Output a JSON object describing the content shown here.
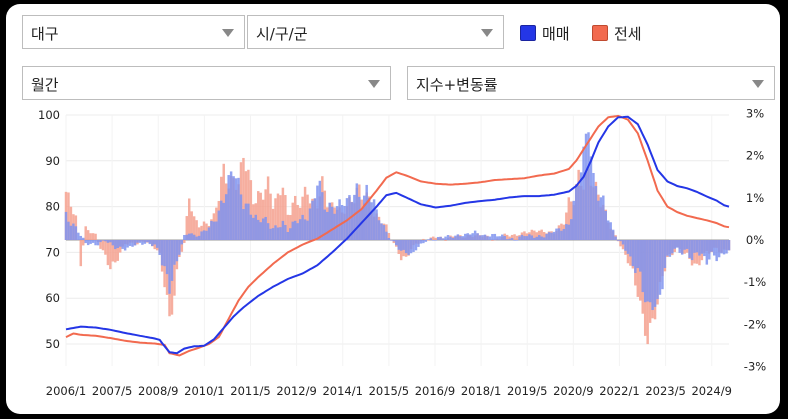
{
  "controls": {
    "region": "대구",
    "subregion": "시/구/군",
    "period": "월간",
    "metric": "지수+변동률"
  },
  "colors": {
    "sale": "#2436e6",
    "jeonse": "#f26a4f",
    "sale_bar": "#7f93ee",
    "jeonse_bar": "#f5a08e"
  },
  "chart_data": {
    "type": "line",
    "title": "",
    "series": [
      {
        "name": "매매",
        "kind": "index",
        "axis": "left"
      },
      {
        "name": "전세",
        "kind": "index",
        "axis": "left"
      },
      {
        "name": "매매",
        "kind": "change_rate",
        "axis": "right"
      },
      {
        "name": "전세",
        "kind": "change_rate",
        "axis": "right"
      }
    ],
    "x_ticks": [
      "2006/1",
      "2007/5",
      "2008/9",
      "2010/1",
      "2011/5",
      "2012/9",
      "2014/1",
      "2015/5",
      "2016/9",
      "2018/1",
      "2019/5",
      "2020/9",
      "2022/1",
      "2023/5",
      "2024/9"
    ],
    "x_range": [
      "2006/1",
      "2025/3"
    ],
    "y_left": {
      "ticks": [
        100,
        90,
        80,
        70,
        60,
        50
      ],
      "range": [
        47,
        100
      ]
    },
    "y_right": {
      "ticks": [
        "3%",
        "2%",
        "1%",
        "0%",
        "-1%",
        "-2%",
        "-3%"
      ],
      "range": [
        -3,
        3
      ]
    },
    "index_points": {
      "sale": [
        [
          0,
          53.2
        ],
        [
          6,
          53.8
        ],
        [
          12,
          53.6
        ],
        [
          18,
          53.1
        ],
        [
          24,
          52.4
        ],
        [
          30,
          51.8
        ],
        [
          36,
          51.2
        ],
        [
          38,
          50.9
        ],
        [
          40,
          49.5
        ],
        [
          42,
          48.2
        ],
        [
          45,
          48.0
        ],
        [
          48,
          49.0
        ],
        [
          52,
          49.5
        ],
        [
          56,
          49.6
        ],
        [
          60,
          51.0
        ],
        [
          64,
          53.5
        ],
        [
          68,
          56.0
        ],
        [
          72,
          58.0
        ],
        [
          78,
          60.5
        ],
        [
          84,
          62.5
        ],
        [
          90,
          64.2
        ],
        [
          96,
          65.4
        ],
        [
          102,
          67.2
        ],
        [
          108,
          70.0
        ],
        [
          114,
          73.0
        ],
        [
          120,
          76.5
        ],
        [
          126,
          80.0
        ],
        [
          130,
          82.5
        ],
        [
          134,
          83.0
        ],
        [
          138,
          82.0
        ],
        [
          144,
          80.5
        ],
        [
          150,
          79.8
        ],
        [
          156,
          80.2
        ],
        [
          162,
          80.8
        ],
        [
          168,
          81.2
        ],
        [
          174,
          81.5
        ],
        [
          180,
          82.0
        ],
        [
          186,
          82.3
        ],
        [
          192,
          82.3
        ],
        [
          198,
          82.6
        ],
        [
          204,
          83.3
        ],
        [
          207,
          84.5
        ],
        [
          210,
          86.5
        ],
        [
          213,
          90.0
        ],
        [
          216,
          94.0
        ],
        [
          220,
          97.5
        ],
        [
          224,
          99.5
        ],
        [
          228,
          99.6
        ],
        [
          232,
          98.0
        ],
        [
          236,
          93.5
        ],
        [
          240,
          88.0
        ],
        [
          244,
          85.5
        ],
        [
          248,
          84.5
        ],
        [
          252,
          84.0
        ],
        [
          256,
          83.2
        ],
        [
          260,
          82.2
        ],
        [
          264,
          81.3
        ],
        [
          267,
          80.3
        ],
        [
          269,
          80.0
        ]
      ],
      "jeonse": [
        [
          0,
          51.5
        ],
        [
          3,
          52.3
        ],
        [
          6,
          52.0
        ],
        [
          12,
          51.8
        ],
        [
          18,
          51.3
        ],
        [
          24,
          50.7
        ],
        [
          30,
          50.3
        ],
        [
          36,
          50.1
        ],
        [
          40,
          49.8
        ],
        [
          42,
          48.0
        ],
        [
          46,
          47.5
        ],
        [
          50,
          48.5
        ],
        [
          54,
          49.2
        ],
        [
          58,
          50.0
        ],
        [
          62,
          51.5
        ],
        [
          66,
          55.5
        ],
        [
          70,
          59.5
        ],
        [
          74,
          62.5
        ],
        [
          78,
          64.6
        ],
        [
          84,
          67.5
        ],
        [
          90,
          70.0
        ],
        [
          96,
          71.7
        ],
        [
          102,
          73.0
        ],
        [
          108,
          75.0
        ],
        [
          114,
          77.0
        ],
        [
          120,
          79.5
        ],
        [
          126,
          83.5
        ],
        [
          130,
          86.3
        ],
        [
          134,
          87.5
        ],
        [
          138,
          86.8
        ],
        [
          144,
          85.5
        ],
        [
          150,
          85.0
        ],
        [
          156,
          84.8
        ],
        [
          162,
          85.0
        ],
        [
          168,
          85.3
        ],
        [
          174,
          85.8
        ],
        [
          180,
          86.0
        ],
        [
          186,
          86.2
        ],
        [
          192,
          86.8
        ],
        [
          198,
          87.2
        ],
        [
          204,
          88.2
        ],
        [
          207,
          90.0
        ],
        [
          210,
          92.5
        ],
        [
          213,
          95.0
        ],
        [
          216,
          97.5
        ],
        [
          220,
          99.5
        ],
        [
          224,
          99.8
        ],
        [
          228,
          99.0
        ],
        [
          232,
          96.0
        ],
        [
          236,
          90.0
        ],
        [
          240,
          83.5
        ],
        [
          244,
          80.0
        ],
        [
          248,
          78.8
        ],
        [
          252,
          78.0
        ],
        [
          256,
          77.5
        ],
        [
          260,
          77.0
        ],
        [
          264,
          76.4
        ],
        [
          267,
          75.7
        ],
        [
          269,
          75.5
        ]
      ]
    },
    "rate_points": {
      "sale": [
        [
          0,
          0.6
        ],
        [
          4,
          0.3
        ],
        [
          8,
          -0.1
        ],
        [
          12,
          -0.1
        ],
        [
          16,
          0.0
        ],
        [
          20,
          -0.2
        ],
        [
          24,
          -0.2
        ],
        [
          28,
          -0.1
        ],
        [
          32,
          -0.1
        ],
        [
          36,
          -0.1
        ],
        [
          38,
          -0.3
        ],
        [
          40,
          -0.7
        ],
        [
          42,
          -1.2
        ],
        [
          44,
          -0.8
        ],
        [
          46,
          -0.3
        ],
        [
          48,
          0.1
        ],
        [
          50,
          0.2
        ],
        [
          52,
          0.1
        ],
        [
          54,
          0.1
        ],
        [
          58,
          0.3
        ],
        [
          62,
          0.7
        ],
        [
          64,
          1.0
        ],
        [
          66,
          1.3
        ],
        [
          68,
          1.6
        ],
        [
          70,
          1.3
        ],
        [
          72,
          1.0
        ],
        [
          74,
          0.8
        ],
        [
          76,
          0.6
        ],
        [
          78,
          0.4
        ],
        [
          80,
          0.5
        ],
        [
          82,
          0.4
        ],
        [
          84,
          0.3
        ],
        [
          88,
          0.4
        ],
        [
          90,
          0.2
        ],
        [
          94,
          0.5
        ],
        [
          98,
          0.6
        ],
        [
          100,
          0.8
        ],
        [
          102,
          1.3
        ],
        [
          104,
          1.0
        ],
        [
          106,
          0.7
        ],
        [
          108,
          0.9
        ],
        [
          110,
          0.8
        ],
        [
          112,
          0.9
        ],
        [
          114,
          0.8
        ],
        [
          116,
          1.0
        ],
        [
          118,
          1.2
        ],
        [
          120,
          1.0
        ],
        [
          122,
          1.2
        ],
        [
          124,
          1.0
        ],
        [
          126,
          0.6
        ],
        [
          128,
          0.4
        ],
        [
          130,
          0.2
        ],
        [
          132,
          0.0
        ],
        [
          134,
          -0.1
        ],
        [
          136,
          -0.3
        ],
        [
          138,
          -0.3
        ],
        [
          140,
          -0.4
        ],
        [
          142,
          -0.2
        ],
        [
          144,
          -0.1
        ],
        [
          146,
          0.0
        ],
        [
          150,
          0.0
        ],
        [
          154,
          0.1
        ],
        [
          158,
          0.1
        ],
        [
          162,
          0.1
        ],
        [
          166,
          0.2
        ],
        [
          170,
          0.1
        ],
        [
          174,
          0.1
        ],
        [
          178,
          0.1
        ],
        [
          182,
          0.0
        ],
        [
          186,
          0.1
        ],
        [
          190,
          0.1
        ],
        [
          194,
          0.1
        ],
        [
          198,
          0.2
        ],
        [
          202,
          0.3
        ],
        [
          204,
          0.4
        ],
        [
          206,
          0.9
        ],
        [
          208,
          1.3
        ],
        [
          210,
          2.0
        ],
        [
          212,
          2.7
        ],
        [
          214,
          1.5
        ],
        [
          216,
          1.2
        ],
        [
          218,
          0.9
        ],
        [
          220,
          0.5
        ],
        [
          222,
          0.2
        ],
        [
          224,
          0.0
        ],
        [
          226,
          -0.1
        ],
        [
          228,
          -0.3
        ],
        [
          230,
          -0.6
        ],
        [
          232,
          -0.8
        ],
        [
          234,
          -1.2
        ],
        [
          236,
          -1.6
        ],
        [
          238,
          -1.4
        ],
        [
          240,
          -1.5
        ],
        [
          242,
          -1.0
        ],
        [
          244,
          -0.5
        ],
        [
          246,
          -0.3
        ],
        [
          248,
          -0.2
        ],
        [
          250,
          -0.3
        ],
        [
          252,
          -0.2
        ],
        [
          254,
          -0.5
        ],
        [
          256,
          -0.3
        ],
        [
          258,
          -0.4
        ],
        [
          260,
          -0.5
        ],
        [
          262,
          -0.3
        ],
        [
          264,
          -0.4
        ],
        [
          266,
          -0.4
        ],
        [
          268,
          -0.3
        ]
      ],
      "jeonse": [
        [
          0,
          1.0
        ],
        [
          2,
          0.8
        ],
        [
          4,
          0.5
        ],
        [
          6,
          -0.5
        ],
        [
          8,
          0.3
        ],
        [
          10,
          0.2
        ],
        [
          12,
          0.1
        ],
        [
          14,
          -0.2
        ],
        [
          16,
          -0.4
        ],
        [
          18,
          -0.6
        ],
        [
          20,
          -0.5
        ],
        [
          22,
          -0.3
        ],
        [
          24,
          -0.1
        ],
        [
          28,
          -0.1
        ],
        [
          32,
          0.0
        ],
        [
          36,
          -0.2
        ],
        [
          38,
          -0.4
        ],
        [
          40,
          -1.0
        ],
        [
          42,
          -1.8
        ],
        [
          44,
          -1.2
        ],
        [
          46,
          -0.4
        ],
        [
          48,
          -0.1
        ],
        [
          50,
          1.0
        ],
        [
          52,
          0.5
        ],
        [
          54,
          0.4
        ],
        [
          56,
          0.4
        ],
        [
          58,
          0.4
        ],
        [
          60,
          0.5
        ],
        [
          62,
          1.0
        ],
        [
          64,
          1.7
        ],
        [
          66,
          1.4
        ],
        [
          68,
          1.5
        ],
        [
          70,
          1.3
        ],
        [
          72,
          1.9
        ],
        [
          74,
          1.5
        ],
        [
          76,
          1.0
        ],
        [
          78,
          1.1
        ],
        [
          80,
          1.2
        ],
        [
          82,
          1.3
        ],
        [
          84,
          0.8
        ],
        [
          86,
          0.9
        ],
        [
          88,
          1.4
        ],
        [
          90,
          0.6
        ],
        [
          92,
          1.0
        ],
        [
          94,
          0.8
        ],
        [
          96,
          0.9
        ],
        [
          98,
          1.1
        ],
        [
          100,
          0.9
        ],
        [
          102,
          1.0
        ],
        [
          104,
          1.4
        ],
        [
          106,
          0.9
        ],
        [
          108,
          0.7
        ],
        [
          110,
          0.8
        ],
        [
          112,
          0.6
        ],
        [
          114,
          1.0
        ],
        [
          116,
          0.9
        ],
        [
          118,
          1.2
        ],
        [
          120,
          0.9
        ],
        [
          122,
          1.0
        ],
        [
          124,
          0.8
        ],
        [
          126,
          0.6
        ],
        [
          128,
          0.5
        ],
        [
          130,
          0.3
        ],
        [
          132,
          0.0
        ],
        [
          134,
          -0.2
        ],
        [
          136,
          -0.4
        ],
        [
          138,
          -0.4
        ],
        [
          140,
          -0.2
        ],
        [
          142,
          -0.1
        ],
        [
          146,
          0.0
        ],
        [
          150,
          0.1
        ],
        [
          154,
          0.0
        ],
        [
          158,
          0.1
        ],
        [
          162,
          0.1
        ],
        [
          166,
          0.1
        ],
        [
          170,
          0.1
        ],
        [
          174,
          0.0
        ],
        [
          178,
          0.1
        ],
        [
          182,
          0.1
        ],
        [
          186,
          0.2
        ],
        [
          190,
          0.2
        ],
        [
          194,
          0.2
        ],
        [
          198,
          0.2
        ],
        [
          202,
          0.4
        ],
        [
          204,
          0.8
        ],
        [
          206,
          1.0
        ],
        [
          208,
          1.6
        ],
        [
          210,
          1.4
        ],
        [
          212,
          1.6
        ],
        [
          214,
          1.2
        ],
        [
          216,
          1.0
        ],
        [
          218,
          0.8
        ],
        [
          220,
          0.5
        ],
        [
          222,
          0.2
        ],
        [
          224,
          0.0
        ],
        [
          226,
          -0.3
        ],
        [
          228,
          -0.5
        ],
        [
          230,
          -0.8
        ],
        [
          232,
          -1.1
        ],
        [
          234,
          -1.8
        ],
        [
          236,
          -2.4
        ],
        [
          238,
          -2.0
        ],
        [
          240,
          -1.6
        ],
        [
          242,
          -0.8
        ],
        [
          244,
          -0.4
        ],
        [
          246,
          -0.3
        ],
        [
          248,
          -0.2
        ],
        [
          250,
          -0.3
        ],
        [
          252,
          -0.4
        ],
        [
          254,
          -0.5
        ],
        [
          256,
          -0.6
        ],
        [
          258,
          -0.4
        ],
        [
          260,
          -0.3
        ],
        [
          262,
          -0.3
        ],
        [
          264,
          -0.2
        ],
        [
          266,
          -0.3
        ],
        [
          268,
          -0.2
        ]
      ]
    },
    "grid": true,
    "legend_position": "top-right"
  }
}
